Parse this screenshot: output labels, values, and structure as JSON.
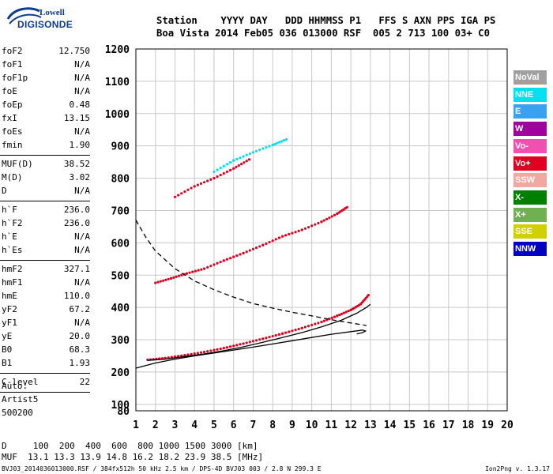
{
  "logo": {
    "line1": "Lowell",
    "line2": "DIGISONDE"
  },
  "header": {
    "line1": "Station    YYYY DAY   DDD HHMMSS P1   FFS S AXN PPS IGA PS",
    "line2": "Boa Vista 2014 Feb05 036 013000 RSF  005 2 713 100 03+ C0"
  },
  "params": {
    "group1": [
      {
        "label": "foF2",
        "value": "12.750"
      },
      {
        "label": "foF1",
        "value": "N/A"
      },
      {
        "label": "foF1p",
        "value": "N/A"
      },
      {
        "label": "foE",
        "value": "N/A"
      },
      {
        "label": "foEp",
        "value": "0.48"
      },
      {
        "label": "fxI",
        "value": "13.15"
      },
      {
        "label": "foEs",
        "value": "N/A"
      },
      {
        "label": "fmin",
        "value": "1.90"
      }
    ],
    "group2": [
      {
        "label": "MUF(D)",
        "value": "38.52"
      },
      {
        "label": "M(D)",
        "value": "3.02"
      },
      {
        "label": "D",
        "value": "N/A"
      }
    ],
    "group3": [
      {
        "label": "h`F",
        "value": "236.0"
      },
      {
        "label": "h`F2",
        "value": "236.0"
      },
      {
        "label": "h`E",
        "value": "N/A"
      },
      {
        "label": "h`Es",
        "value": "N/A"
      }
    ],
    "group4": [
      {
        "label": "hmF2",
        "value": "327.1"
      },
      {
        "label": "hmF1",
        "value": "N/A"
      },
      {
        "label": "hmE",
        "value": "110.0"
      },
      {
        "label": "yF2",
        "value": "67.2"
      },
      {
        "label": "yF1",
        "value": "N/A"
      },
      {
        "label": "yE",
        "value": "20.0"
      },
      {
        "label": "B0",
        "value": "68.3"
      },
      {
        "label": "B1",
        "value": "1.93"
      }
    ],
    "group5": [
      {
        "label": "C-level",
        "value": "22"
      }
    ]
  },
  "auto": {
    "line1": "Auto:",
    "line2": "Artist5",
    "line3": "500200"
  },
  "legend": [
    {
      "label": "NoVal",
      "color": "#a0a0a0"
    },
    {
      "label": "NNE",
      "color": "#00e0f0"
    },
    {
      "label": "E",
      "color": "#3aa0f0"
    },
    {
      "label": "W",
      "color": "#a000a0"
    },
    {
      "label": "Vo-",
      "color": "#f050b0"
    },
    {
      "label": "Vo+",
      "color": "#e00020"
    },
    {
      "label": "SSW",
      "color": "#f0a8a0"
    },
    {
      "label": "X-",
      "color": "#008000"
    },
    {
      "label": "X+",
      "color": "#70b050"
    },
    {
      "label": "SSE",
      "color": "#d0d000"
    },
    {
      "label": "NNW",
      "color": "#0000c0"
    }
  ],
  "bottom": {
    "d_line": "D     100  200  400  600  800 1000 1500 3000 [km]",
    "muf_line": "MUF  13.1 13.3 13.9 14.8 16.2 18.2 23.9 38.5 [MHz]"
  },
  "footer": {
    "left": "BVJ03_2014036013000.RSF / 384fx512h 50 kHz 2.5 km / DPS-4D BVJ03 003 / 2.8 N 299.3 E",
    "right": "Ion2Png v. 1.3.17"
  },
  "chart_data": {
    "type": "scatter",
    "xlim": [
      1,
      20
    ],
    "ylim": [
      80,
      1200
    ],
    "x_ticks": [
      1,
      2,
      3,
      4,
      5,
      6,
      7,
      8,
      9,
      10,
      11,
      12,
      13,
      14,
      15,
      16,
      17,
      18,
      19,
      20
    ],
    "y_ticks": [
      80,
      100,
      200,
      300,
      400,
      500,
      600,
      700,
      800,
      900,
      1000,
      1100,
      1200
    ],
    "grid": true,
    "traces": [
      {
        "name": "O-trace 1st hop",
        "color": "#e00020",
        "style": "dots",
        "points": [
          [
            1.6,
            238
          ],
          [
            2.5,
            243
          ],
          [
            3.5,
            252
          ],
          [
            4.5,
            262
          ],
          [
            5.5,
            274
          ],
          [
            6.5,
            288
          ],
          [
            7.5,
            303
          ],
          [
            8.5,
            319
          ],
          [
            9.5,
            336
          ],
          [
            10.5,
            355
          ],
          [
            11.3,
            374
          ],
          [
            12.0,
            392
          ],
          [
            12.5,
            410
          ],
          [
            12.9,
            438
          ]
        ]
      },
      {
        "name": "O-trace 2nd hop",
        "color": "#e00020",
        "style": "dots",
        "points": [
          [
            2.0,
            476
          ],
          [
            2.8,
            490
          ],
          [
            3.6,
            505
          ],
          [
            4.5,
            520
          ],
          [
            5.5,
            545
          ],
          [
            6.5,
            568
          ],
          [
            7.5,
            593
          ],
          [
            8.5,
            620
          ],
          [
            9.5,
            640
          ],
          [
            10.5,
            665
          ],
          [
            11.3,
            690
          ],
          [
            11.8,
            710
          ]
        ]
      },
      {
        "name": "O-trace 3rd hop",
        "color": "#e00020",
        "style": "dots",
        "points": [
          [
            3.0,
            742
          ],
          [
            4.0,
            775
          ],
          [
            5.0,
            800
          ],
          [
            6.0,
            830
          ],
          [
            6.8,
            858
          ]
        ]
      },
      {
        "name": "Cyan 3rd hop",
        "color": "#00e0f0",
        "style": "dots",
        "points": [
          [
            5.0,
            820
          ],
          [
            6.0,
            855
          ],
          [
            7.0,
            880
          ],
          [
            8.0,
            903
          ],
          [
            8.7,
            920
          ]
        ]
      },
      {
        "name": "Profile",
        "color": "#000000",
        "style": "line",
        "points": [
          [
            1.0,
            212
          ],
          [
            2.0,
            228
          ],
          [
            3.0,
            240
          ],
          [
            4.0,
            250
          ],
          [
            5.0,
            259
          ],
          [
            6.0,
            268
          ],
          [
            7.0,
            277
          ],
          [
            8.0,
            287
          ],
          [
            9.0,
            297
          ],
          [
            10.0,
            307
          ],
          [
            11.0,
            317
          ],
          [
            12.0,
            325
          ],
          [
            12.6,
            330
          ],
          [
            12.75,
            327
          ],
          [
            12.6,
            322
          ],
          [
            12.3,
            318
          ]
        ]
      },
      {
        "name": "X-trace",
        "color": "#000000",
        "style": "line",
        "points": [
          [
            1.6,
            236
          ],
          [
            2.5,
            240
          ],
          [
            3.5,
            248
          ],
          [
            4.5,
            256
          ],
          [
            5.5,
            266
          ],
          [
            6.5,
            278
          ],
          [
            7.5,
            292
          ],
          [
            8.5,
            307
          ],
          [
            9.5,
            322
          ],
          [
            10.5,
            340
          ],
          [
            11.5,
            360
          ],
          [
            12.3,
            382
          ],
          [
            12.8,
            400
          ],
          [
            13.0,
            410
          ]
        ]
      },
      {
        "name": "Dashed curve",
        "color": "#000000",
        "style": "dash",
        "points": [
          [
            1.0,
            670
          ],
          [
            1.5,
            618
          ],
          [
            2.0,
            575
          ],
          [
            3.0,
            520
          ],
          [
            4.0,
            482
          ],
          [
            5.0,
            455
          ],
          [
            6.0,
            432
          ],
          [
            7.0,
            412
          ],
          [
            8.0,
            398
          ],
          [
            9.0,
            385
          ],
          [
            10.0,
            374
          ],
          [
            11.0,
            362
          ],
          [
            12.0,
            352
          ],
          [
            12.8,
            344
          ]
        ]
      }
    ]
  }
}
